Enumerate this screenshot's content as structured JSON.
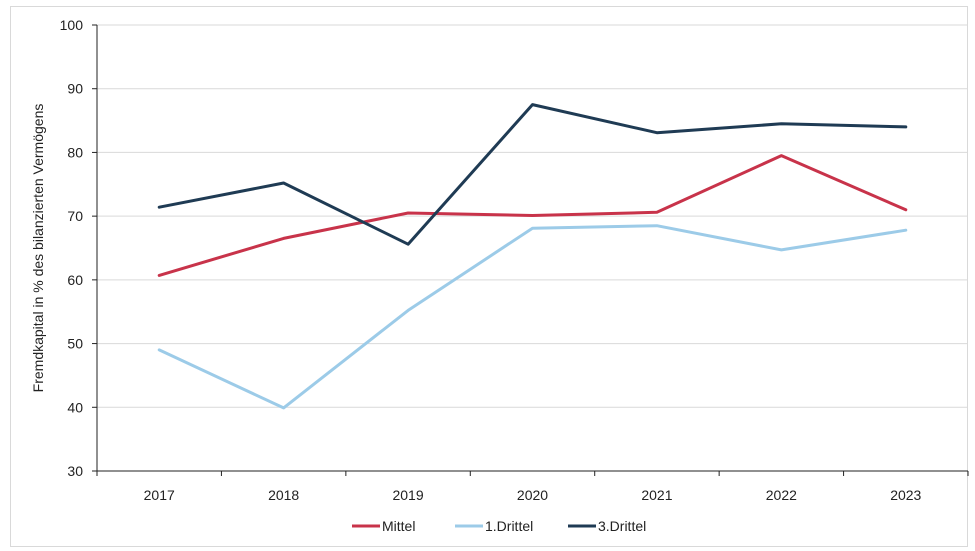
{
  "chart_data": {
    "type": "line",
    "title": "",
    "xlabel": "",
    "ylabel": "Fremdkapital in % des bilanzierten Vermögens",
    "categories": [
      "2017",
      "2018",
      "2019",
      "2020",
      "2021",
      "2022",
      "2023"
    ],
    "ylim": [
      30,
      100
    ],
    "yticks": [
      30,
      40,
      50,
      60,
      70,
      80,
      90,
      100
    ],
    "grid": true,
    "legend_position": "bottom",
    "series": [
      {
        "name": "Mittel",
        "color": "#c8334a",
        "values": [
          60.7,
          66.5,
          70.5,
          70.1,
          70.6,
          79.5,
          71.0
        ]
      },
      {
        "name": "1.Drittel",
        "color": "#9ccbe8",
        "values": [
          49.0,
          39.9,
          55.2,
          68.1,
          68.5,
          64.7,
          67.8
        ]
      },
      {
        "name": "3.Drittel",
        "color": "#1f3b54",
        "values": [
          71.4,
          75.2,
          65.6,
          87.5,
          83.1,
          84.5,
          84.0
        ]
      }
    ]
  }
}
